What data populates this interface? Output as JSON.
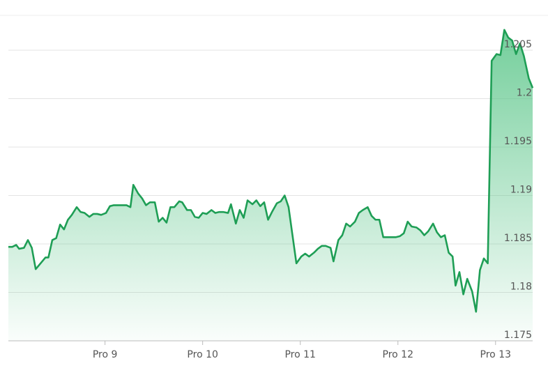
{
  "chart_data": {
    "type": "line",
    "x": [
      8.01,
      8.05,
      8.09,
      8.12,
      8.17,
      8.21,
      8.25,
      8.29,
      8.34,
      8.39,
      8.42,
      8.46,
      8.5,
      8.54,
      8.58,
      8.62,
      8.66,
      8.71,
      8.75,
      8.79,
      8.84,
      8.88,
      8.92,
      8.96,
      9.01,
      9.05,
      9.09,
      9.14,
      9.18,
      9.22,
      9.26,
      9.29,
      9.34,
      9.38,
      9.42,
      9.46,
      9.51,
      9.55,
      9.59,
      9.63,
      9.67,
      9.71,
      9.76,
      9.79,
      9.84,
      9.88,
      9.92,
      9.96,
      10.0,
      10.04,
      10.09,
      10.13,
      10.17,
      10.21,
      10.26,
      10.29,
      10.34,
      10.38,
      10.42,
      10.46,
      10.51,
      10.55,
      10.59,
      10.63,
      10.67,
      10.71,
      10.76,
      10.8,
      10.84,
      10.88,
      10.92,
      10.96,
      11.01,
      11.05,
      11.09,
      11.14,
      11.18,
      11.22,
      11.26,
      11.31,
      11.34,
      11.39,
      11.43,
      11.47,
      11.51,
      11.56,
      11.6,
      11.64,
      11.69,
      11.73,
      11.77,
      11.81,
      11.85,
      11.89,
      11.94,
      11.98,
      12.02,
      12.06,
      12.1,
      12.14,
      12.19,
      12.23,
      12.27,
      12.31,
      12.36,
      12.4,
      12.44,
      12.48,
      12.52,
      12.56,
      12.59,
      12.63,
      12.67,
      12.71,
      12.76,
      12.8,
      12.84,
      12.88,
      12.92,
      12.96,
      13.01,
      13.05,
      13.09,
      13.13,
      13.17,
      13.21,
      13.25,
      13.29,
      13.34,
      13.38
    ],
    "values": [
      1.1847,
      1.1847,
      1.1849,
      1.1845,
      1.1846,
      1.1854,
      1.1846,
      1.1824,
      1.183,
      1.1836,
      1.1836,
      1.1854,
      1.1856,
      1.187,
      1.1865,
      1.1875,
      1.188,
      1.1888,
      1.1883,
      1.1882,
      1.1878,
      1.1881,
      1.1881,
      1.188,
      1.1882,
      1.1889,
      1.189,
      1.189,
      1.189,
      1.189,
      1.1888,
      1.1911,
      1.1902,
      1.1897,
      1.189,
      1.1893,
      1.1893,
      1.1873,
      1.1877,
      1.1872,
      1.1888,
      1.1888,
      1.1894,
      1.1893,
      1.1885,
      1.1885,
      1.1878,
      1.1877,
      1.1882,
      1.1881,
      1.1885,
      1.1882,
      1.1883,
      1.1883,
      1.1882,
      1.1891,
      1.1871,
      1.1885,
      1.1877,
      1.1895,
      1.1891,
      1.1895,
      1.1889,
      1.1893,
      1.1875,
      1.1883,
      1.1892,
      1.1894,
      1.19,
      1.1888,
      1.1859,
      1.183,
      1.1837,
      1.184,
      1.1837,
      1.1841,
      1.1845,
      1.1848,
      1.1848,
      1.1846,
      1.1832,
      1.1854,
      1.1859,
      1.1871,
      1.1868,
      1.1873,
      1.1882,
      1.1885,
      1.1888,
      1.1879,
      1.1875,
      1.1875,
      1.1857,
      1.1857,
      1.1857,
      1.1857,
      1.1858,
      1.1861,
      1.1873,
      1.1868,
      1.1867,
      1.1864,
      1.1859,
      1.1863,
      1.1871,
      1.1862,
      1.1857,
      1.1859,
      1.1841,
      1.1837,
      1.1807,
      1.1821,
      1.1798,
      1.1814,
      1.1801,
      1.178,
      1.1823,
      1.1835,
      1.183,
      1.2039,
      1.2046,
      1.2045,
      1.2071,
      1.2063,
      1.206,
      1.2046,
      1.2057,
      1.2044,
      1.2021,
      1.2011
    ],
    "color": "#1e9e55",
    "xlim": [
      8.01,
      13.38
    ],
    "xticks": [
      {
        "value": 9,
        "label": "Pro 9"
      },
      {
        "value": 10,
        "label": "Pro 10"
      },
      {
        "value": 11,
        "label": "Pro 11"
      },
      {
        "value": 12,
        "label": "Pro 12"
      },
      {
        "value": 13,
        "label": "Pro 13"
      }
    ],
    "ylim": [
      1.175,
      1.2086
    ],
    "yticks": [
      1.175,
      1.18,
      1.185,
      1.19,
      1.195,
      1.2,
      1.205
    ],
    "grid": true
  }
}
